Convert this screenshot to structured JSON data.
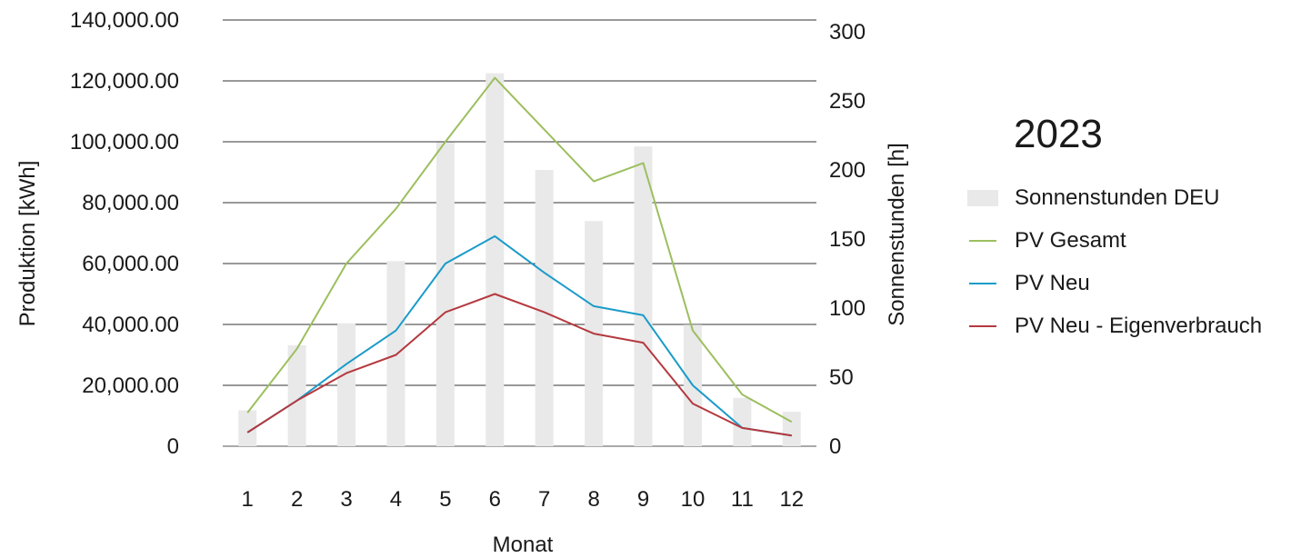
{
  "chart_data": {
    "type": "bar+line",
    "legend_title": "2023",
    "xlabel": "Monat",
    "ylabel_left": "Produktion  [kWh]",
    "ylabel_right": "Sonnenstunden [h]",
    "categories": [
      "1",
      "2",
      "3",
      "4",
      "5",
      "6",
      "7",
      "8",
      "9",
      "10",
      "11",
      "12"
    ],
    "ylim_left": [
      0,
      140000
    ],
    "ylim_right": [
      0,
      300
    ],
    "left_ticks": [
      {
        "value": 0,
        "label": "0"
      },
      {
        "value": 20000,
        "label": "20,000.00"
      },
      {
        "value": 40000,
        "label": "40,000.00"
      },
      {
        "value": 60000,
        "label": "60,000.00"
      },
      {
        "value": 80000,
        "label": "80,000.00"
      },
      {
        "value": 100000,
        "label": "100,000.00"
      },
      {
        "value": 120000,
        "label": "120,000.00"
      },
      {
        "value": 140000,
        "label": "140,000.00"
      }
    ],
    "right_ticks": [
      {
        "value": 0,
        "label": "0"
      },
      {
        "value": 50,
        "label": "50"
      },
      {
        "value": 100,
        "label": "100"
      },
      {
        "value": 150,
        "label": "150"
      },
      {
        "value": 200,
        "label": "200"
      },
      {
        "value": 250,
        "label": "250"
      },
      {
        "value": 300,
        "label": "300"
      }
    ],
    "grid": true,
    "legend_position": "right",
    "bars": {
      "name": "Sonnenstunden DEU",
      "axis": "right",
      "color": "#e9e9e9",
      "values": [
        26,
        73,
        89,
        134,
        220,
        270,
        200,
        163,
        217,
        88,
        35,
        25
      ]
    },
    "series": [
      {
        "name": "PV Gesamt",
        "axis": "left",
        "color": "#9cbf5e",
        "values": [
          11000,
          32000,
          60000,
          78000,
          100000,
          121000,
          104000,
          87000,
          93000,
          38000,
          17000,
          8000
        ]
      },
      {
        "name": "PV Neu",
        "axis": "left",
        "color": "#1a9bc9",
        "values": [
          4500,
          15000,
          27000,
          38000,
          60000,
          69000,
          57000,
          46000,
          43000,
          20000,
          6000,
          3500
        ]
      },
      {
        "name": "PV Neu - Eigenverbrauch",
        "axis": "left",
        "color": "#b5393f",
        "values": [
          4500,
          15000,
          24000,
          30000,
          44000,
          50000,
          44000,
          37000,
          34000,
          14000,
          6000,
          3500
        ]
      }
    ]
  }
}
